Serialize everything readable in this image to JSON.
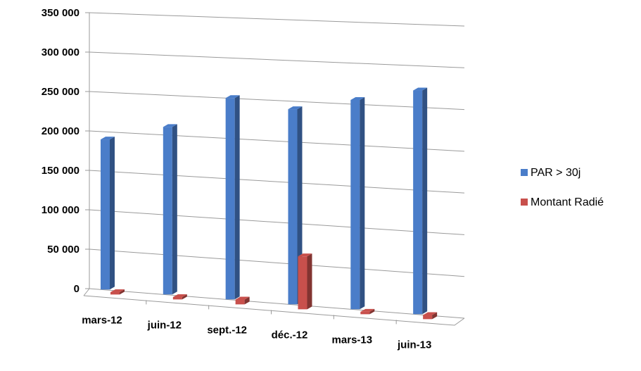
{
  "chart_data": {
    "type": "bar",
    "categories": [
      "mars-12",
      "juin-12",
      "sept.-12",
      "déc.-12",
      "mars-13",
      "juin-13"
    ],
    "series": [
      {
        "name": "PAR > 30j",
        "values": [
          190000,
          210000,
          250000,
          240000,
          255000,
          270000
        ],
        "color": "#4a7dc9"
      },
      {
        "name": "Montant Radié",
        "values": [
          3000,
          3000,
          6000,
          65000,
          3000,
          5000
        ],
        "color": "#c8504c"
      }
    ],
    "ylim": [
      0,
      350000
    ],
    "yticks": [
      "0",
      "50 000",
      "100 000",
      "150 000",
      "200 000",
      "250 000",
      "300 000",
      "350 000"
    ],
    "grid": true,
    "legend": "right",
    "style": "3d-perspective"
  }
}
